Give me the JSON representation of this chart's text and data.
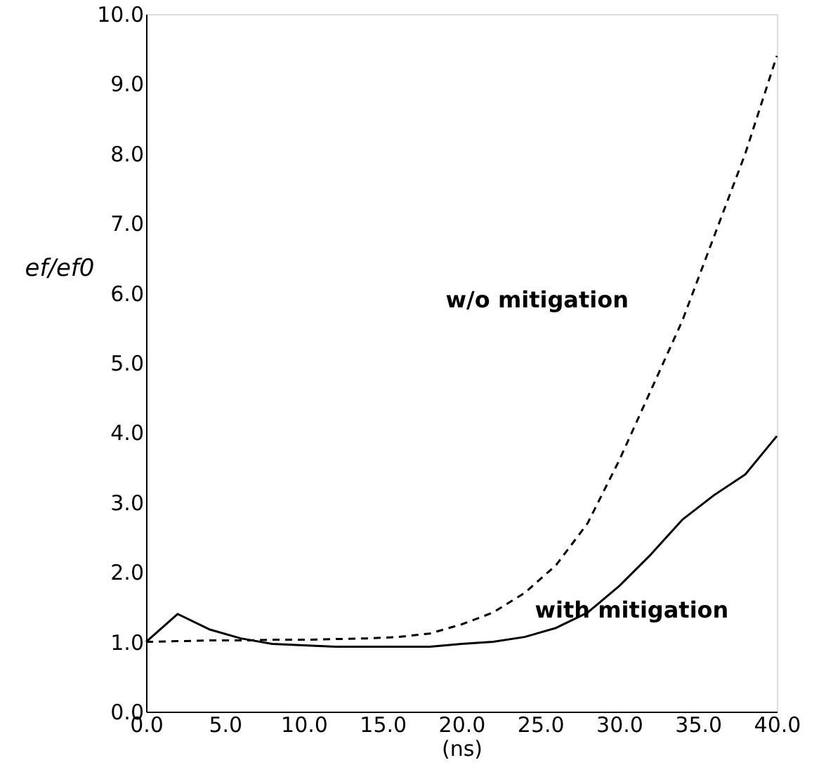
{
  "chart_data": {
    "type": "line",
    "xlabel": "(ns)",
    "ylabel": "ef/ef0",
    "x": [
      0,
      2,
      4,
      6,
      8,
      10,
      12,
      14,
      16,
      18,
      20,
      22,
      24,
      26,
      28,
      30,
      32,
      34,
      36,
      38,
      40
    ],
    "series": [
      {
        "color": "#000000",
        "line_style": "dashed",
        "values": [
          1.0,
          1.01,
          1.02,
          1.02,
          1.03,
          1.03,
          1.04,
          1.05,
          1.07,
          1.12,
          1.25,
          1.42,
          1.7,
          2.1,
          2.7,
          3.6,
          4.6,
          5.6,
          6.8,
          8.0,
          9.4
        ]
      },
      {
        "color": "#000000",
        "line_style": "solid",
        "values": [
          1.0,
          1.4,
          1.18,
          1.05,
          0.97,
          0.95,
          0.93,
          0.93,
          0.93,
          0.93,
          0.97,
          1.0,
          1.07,
          1.2,
          1.42,
          1.8,
          2.25,
          2.75,
          3.1,
          3.4,
          3.95
        ]
      }
    ],
    "annotations": [
      "w/o mitigation",
      "with mitigation"
    ],
    "xlim": [
      0,
      40
    ],
    "ylim": [
      0,
      10
    ],
    "xticks": [
      {
        "value": 0,
        "label": "0.0"
      },
      {
        "value": 5,
        "label": "5.0"
      },
      {
        "value": 10,
        "label": "10.0"
      },
      {
        "value": 15,
        "label": "15.0"
      },
      {
        "value": 20,
        "label": "20.0"
      },
      {
        "value": 25,
        "label": "25.0"
      },
      {
        "value": 30,
        "label": "30.0"
      },
      {
        "value": 35,
        "label": "35.0"
      },
      {
        "value": 40,
        "label": "40.0"
      }
    ],
    "yticks": [
      {
        "value": 0,
        "label": "0.0"
      },
      {
        "value": 1,
        "label": "1.0"
      },
      {
        "value": 2,
        "label": "2.0"
      },
      {
        "value": 3,
        "label": "3.0"
      },
      {
        "value": 4,
        "label": "4.0"
      },
      {
        "value": 5,
        "label": "5.0"
      },
      {
        "value": 6,
        "label": "6.0"
      },
      {
        "value": 7,
        "label": "7.0"
      },
      {
        "value": 8,
        "label": "8.0"
      },
      {
        "value": 9,
        "label": "9.0"
      },
      {
        "value": 10,
        "label": "10.0"
      }
    ],
    "grid": false
  }
}
